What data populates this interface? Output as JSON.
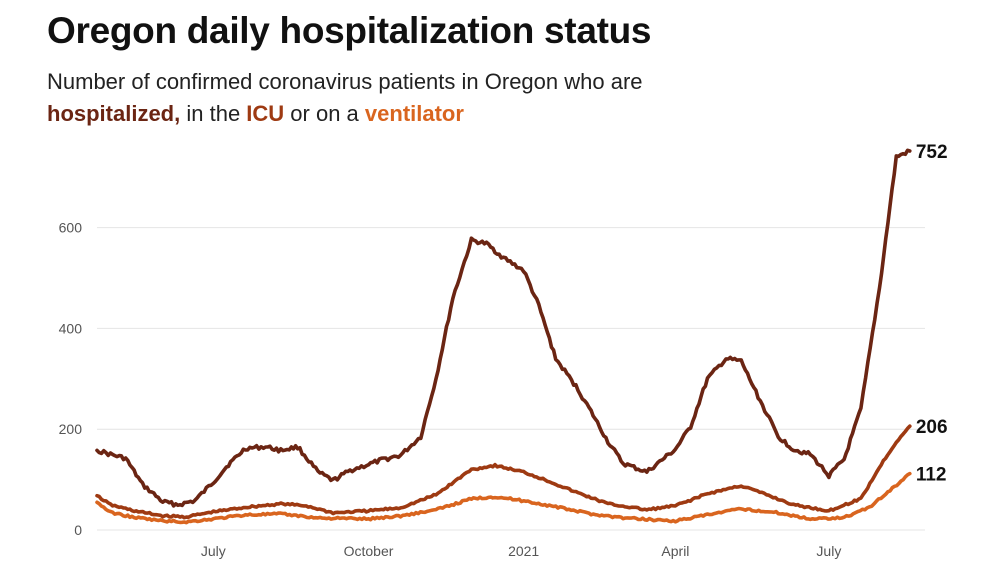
{
  "header": {
    "title": "Oregon daily hospitalization status",
    "subtitle_prefix": "Number of confirmed coronavirus patients in Oregon who are",
    "subtitle_hosp": "hospitalized,",
    "subtitle_mid1": " in the ",
    "subtitle_icu": "ICU",
    "subtitle_mid2": " or on a ",
    "subtitle_vent": "ventilator"
  },
  "chart_data": {
    "type": "line",
    "x_format": "YYYY-MM-DD",
    "xlim": [
      "2020-04-23",
      "2021-08-27"
    ],
    "ylim": [
      0,
      760
    ],
    "y_ticks": [
      0,
      200,
      400,
      600
    ],
    "x_ticks": [
      {
        "date": "2020-07-01",
        "label": "July"
      },
      {
        "date": "2020-10-01",
        "label": "October"
      },
      {
        "date": "2021-01-01",
        "label": "2021"
      },
      {
        "date": "2021-04-01",
        "label": "April"
      },
      {
        "date": "2021-07-01",
        "label": "July"
      }
    ],
    "grid": true,
    "series": [
      {
        "name": "hospitalized",
        "color": "#6b2513",
        "end_label": "752",
        "points": [
          [
            "2020-04-23",
            158
          ],
          [
            "2020-05-01",
            150
          ],
          [
            "2020-05-10",
            142
          ],
          [
            "2020-05-20",
            90
          ],
          [
            "2020-06-01",
            56
          ],
          [
            "2020-06-10",
            50
          ],
          [
            "2020-06-20",
            58
          ],
          [
            "2020-07-01",
            95
          ],
          [
            "2020-07-10",
            130
          ],
          [
            "2020-07-20",
            162
          ],
          [
            "2020-08-01",
            165
          ],
          [
            "2020-08-10",
            158
          ],
          [
            "2020-08-20",
            165
          ],
          [
            "2020-09-01",
            115
          ],
          [
            "2020-09-10",
            98
          ],
          [
            "2020-09-20",
            118
          ],
          [
            "2020-10-01",
            130
          ],
          [
            "2020-10-10",
            140
          ],
          [
            "2020-10-20",
            148
          ],
          [
            "2020-11-01",
            185
          ],
          [
            "2020-11-10",
            300
          ],
          [
            "2020-11-20",
            460
          ],
          [
            "2020-12-01",
            575
          ],
          [
            "2020-12-10",
            568
          ],
          [
            "2020-12-20",
            540
          ],
          [
            "2021-01-01",
            515
          ],
          [
            "2021-01-10",
            445
          ],
          [
            "2021-01-20",
            340
          ],
          [
            "2021-02-01",
            285
          ],
          [
            "2021-02-10",
            235
          ],
          [
            "2021-02-20",
            175
          ],
          [
            "2021-03-01",
            132
          ],
          [
            "2021-03-15",
            115
          ],
          [
            "2021-04-01",
            160
          ],
          [
            "2021-04-10",
            205
          ],
          [
            "2021-04-20",
            300
          ],
          [
            "2021-05-01",
            340
          ],
          [
            "2021-05-10",
            335
          ],
          [
            "2021-05-20",
            265
          ],
          [
            "2021-06-01",
            185
          ],
          [
            "2021-06-10",
            160
          ],
          [
            "2021-06-20",
            150
          ],
          [
            "2021-07-01",
            108
          ],
          [
            "2021-07-10",
            140
          ],
          [
            "2021-07-20",
            240
          ],
          [
            "2021-07-31",
            480
          ],
          [
            "2021-08-10",
            740
          ],
          [
            "2021-08-18",
            752
          ]
        ]
      },
      {
        "name": "ICU",
        "color": "#9e3a12",
        "end_label": "206",
        "points": [
          [
            "2020-04-23",
            68
          ],
          [
            "2020-05-01",
            50
          ],
          [
            "2020-05-15",
            38
          ],
          [
            "2020-06-01",
            28
          ],
          [
            "2020-06-15",
            26
          ],
          [
            "2020-07-01",
            36
          ],
          [
            "2020-07-20",
            45
          ],
          [
            "2020-08-10",
            52
          ],
          [
            "2020-08-25",
            48
          ],
          [
            "2020-09-10",
            34
          ],
          [
            "2020-10-01",
            38
          ],
          [
            "2020-10-20",
            44
          ],
          [
            "2020-11-10",
            70
          ],
          [
            "2020-12-01",
            120
          ],
          [
            "2020-12-15",
            128
          ],
          [
            "2021-01-01",
            115
          ],
          [
            "2021-01-15",
            98
          ],
          [
            "2021-02-01",
            75
          ],
          [
            "2021-02-20",
            52
          ],
          [
            "2021-03-15",
            40
          ],
          [
            "2021-04-01",
            48
          ],
          [
            "2021-04-20",
            72
          ],
          [
            "2021-05-10",
            88
          ],
          [
            "2021-05-25",
            70
          ],
          [
            "2021-06-10",
            50
          ],
          [
            "2021-07-01",
            38
          ],
          [
            "2021-07-20",
            62
          ],
          [
            "2021-08-01",
            130
          ],
          [
            "2021-08-10",
            175
          ],
          [
            "2021-08-18",
            206
          ]
        ]
      },
      {
        "name": "ventilator",
        "color": "#d9651f",
        "end_label": "112",
        "points": [
          [
            "2020-04-23",
            55
          ],
          [
            "2020-05-01",
            35
          ],
          [
            "2020-05-15",
            25
          ],
          [
            "2020-06-01",
            18
          ],
          [
            "2020-06-15",
            16
          ],
          [
            "2020-07-01",
            22
          ],
          [
            "2020-07-20",
            30
          ],
          [
            "2020-08-10",
            32
          ],
          [
            "2020-09-01",
            24
          ],
          [
            "2020-10-01",
            22
          ],
          [
            "2020-10-20",
            28
          ],
          [
            "2020-11-10",
            40
          ],
          [
            "2020-12-01",
            62
          ],
          [
            "2020-12-15",
            66
          ],
          [
            "2021-01-01",
            58
          ],
          [
            "2021-01-20",
            46
          ],
          [
            "2021-02-10",
            32
          ],
          [
            "2021-03-01",
            24
          ],
          [
            "2021-04-01",
            18
          ],
          [
            "2021-04-20",
            30
          ],
          [
            "2021-05-10",
            42
          ],
          [
            "2021-06-01",
            34
          ],
          [
            "2021-06-20",
            22
          ],
          [
            "2021-07-10",
            25
          ],
          [
            "2021-07-25",
            45
          ],
          [
            "2021-08-05",
            75
          ],
          [
            "2021-08-18",
            112
          ]
        ]
      }
    ]
  }
}
